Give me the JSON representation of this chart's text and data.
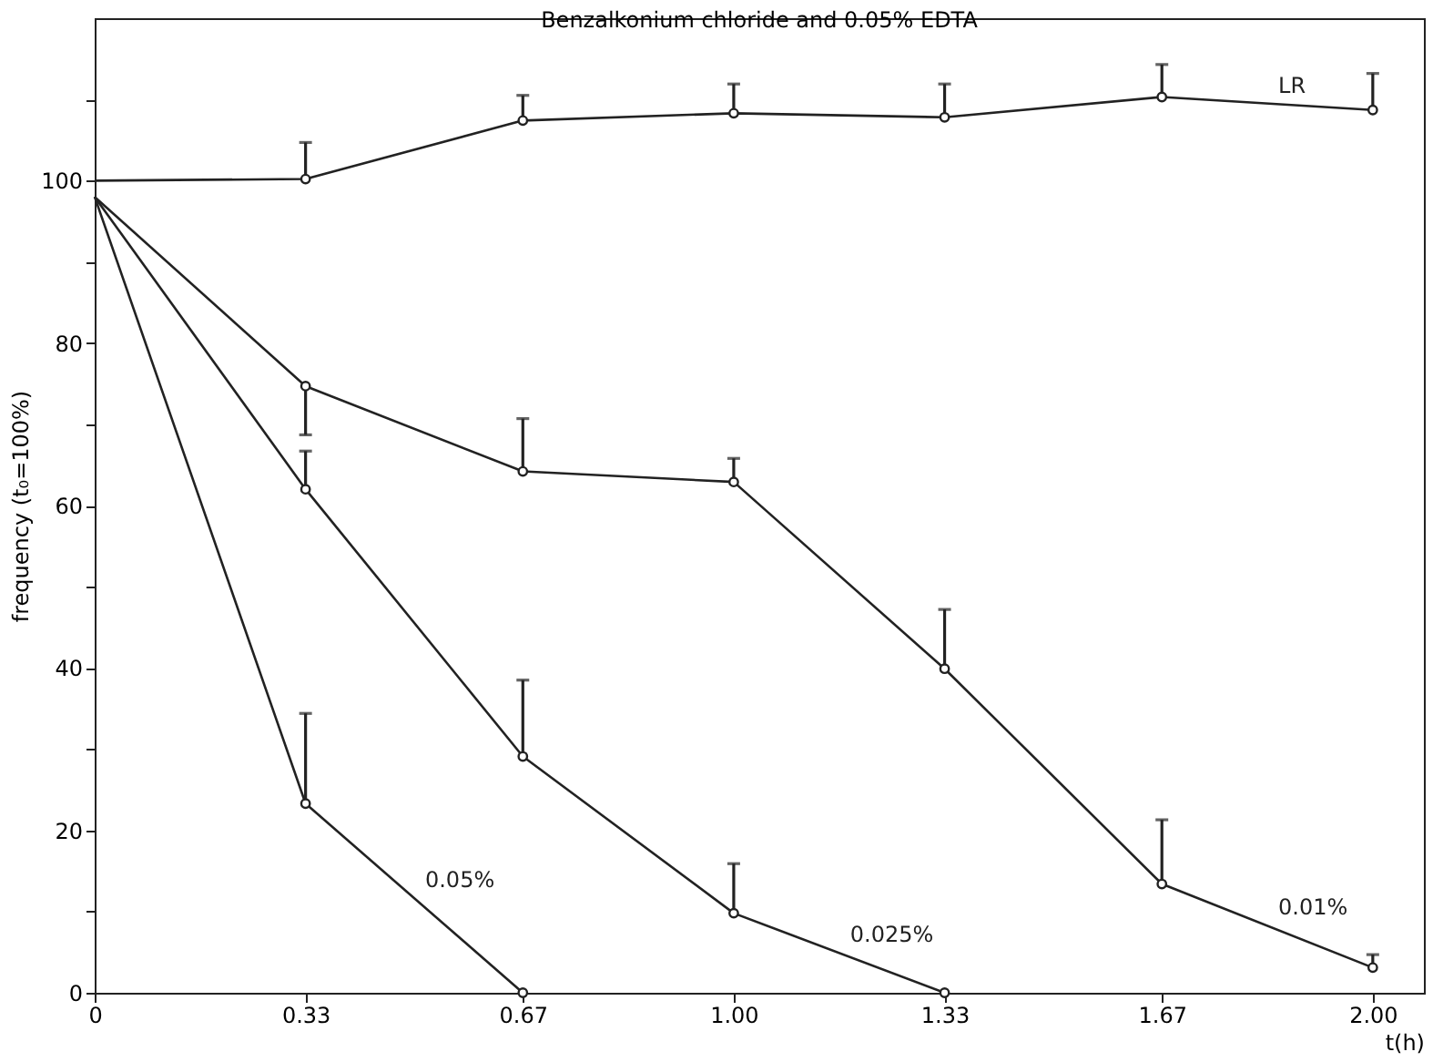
{
  "chart_data": {
    "type": "line",
    "title": "Benzalkonium chloride and 0.05% EDTA",
    "xlabel": "t(h)",
    "ylabel": "frequency (t₀=100%)",
    "xlim": [
      0,
      2.08
    ],
    "xticks": [
      0,
      0.33,
      0.67,
      {
        "value": 1.0,
        "label": "1.00"
      },
      1.33,
      1.67,
      {
        "value": 2.0,
        "label": "2.00"
      }
    ],
    "ylim": [
      0,
      120
    ],
    "yticks": [
      0,
      {
        "value": 10,
        "label": null
      },
      20,
      {
        "value": 30,
        "label": null
      },
      40,
      {
        "value": 50,
        "label": null
      },
      60,
      {
        "value": 70,
        "label": null
      },
      80,
      {
        "value": 90,
        "label": null
      },
      100,
      {
        "value": 110,
        "label": null
      }
    ],
    "grid": false,
    "marker": "circle",
    "line_style": "solid",
    "series": [
      {
        "name": "LR",
        "color": "#222222",
        "x": [
          0,
          0.33,
          0.67,
          1.0,
          1.33,
          1.67,
          2.0
        ],
        "values": [
          100,
          100.2,
          107.4,
          108.3,
          107.8,
          110.3,
          108.7
        ],
        "errors": [
          null,
          [
            100.2,
            104.7
          ],
          [
            107.4,
            110.5
          ],
          [
            108.3,
            111.9
          ],
          [
            107.8,
            111.9
          ],
          [
            110.3,
            114.3
          ],
          [
            108.7,
            113.2
          ]
        ]
      },
      {
        "name": "0.01%",
        "color": "#222222",
        "x": [
          0,
          0.33,
          0.67,
          1.0,
          1.33,
          1.67,
          2.0
        ],
        "values": [
          98,
          74.7,
          64.2,
          62.9,
          39.9,
          13.4,
          3.1
        ],
        "errors": [
          null,
          [
            68.7,
            74.7
          ],
          [
            64.2,
            70.7
          ],
          [
            62.9,
            65.8
          ],
          [
            39.9,
            47.2
          ],
          [
            13.4,
            21.3
          ],
          [
            3.1,
            4.7
          ]
        ]
      },
      {
        "name": "0.025%",
        "color": "#222222",
        "x": [
          0,
          0.33,
          0.67,
          1.0,
          1.33
        ],
        "values": [
          98,
          62.0,
          29.1,
          9.8,
          0
        ],
        "errors": [
          null,
          [
            62.0,
            66.7
          ],
          [
            29.1,
            38.5
          ],
          [
            9.8,
            15.9
          ],
          null
        ]
      },
      {
        "name": "0.05%",
        "color": "#222222",
        "x": [
          0,
          0.33,
          0.67
        ],
        "values": [
          98,
          23.3,
          0
        ],
        "errors": [
          null,
          [
            23.3,
            34.4
          ],
          null
        ]
      }
    ]
  }
}
